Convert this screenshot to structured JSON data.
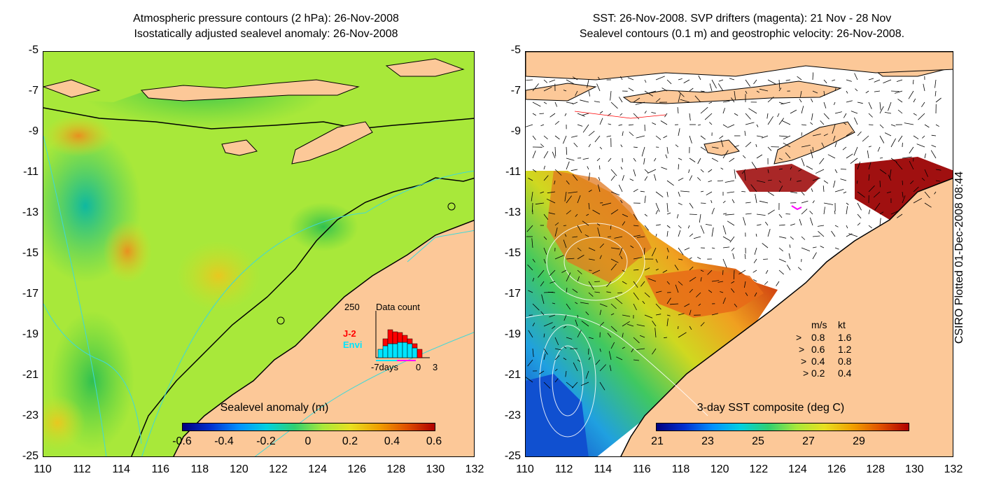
{
  "left_panel": {
    "title_line1": "Atmospheric pressure contours (2 hPa): 26-Nov-2008",
    "title_line2": "Isostatically adjusted sealevel anomaly: 26-Nov-2008",
    "colorbar_title": "Sealevel anomaly (m)",
    "colorbar_ticks": [
      "-0.6",
      "-0.4",
      "-0.2",
      "0",
      "0.2",
      "0.4",
      "0.6"
    ],
    "inset": {
      "max_label": "250",
      "title": "Data count",
      "sat1": "J-2",
      "sat2": "Envi",
      "x_start": "-7days",
      "x_zero": "0",
      "x_end": "3",
      "sat1_color": "#ff0000",
      "sat2_color": "#00e5ff"
    }
  },
  "right_panel": {
    "title_line1": "SST: 26-Nov-2008. SVP drifters (magenta): 21 Nov - 28 Nov",
    "title_line2": "Sealevel contours (0.1 m) and geostrophic velocity: 26-Nov-2008.",
    "colorbar_title": "3-day SST composite (deg C)",
    "colorbar_ticks": [
      "21",
      "23",
      "25",
      "27",
      "29"
    ],
    "legend": {
      "header_ms": "m/s",
      "header_kt": "kt",
      "rows": [
        {
          "ms": "0.8",
          "kt": "1.6"
        },
        {
          "ms": "0.6",
          "kt": "1.2"
        },
        {
          "ms": "0.4",
          "kt": "0.8"
        },
        {
          "ms": "0.2",
          "kt": "0.4"
        }
      ]
    }
  },
  "axes": {
    "y_ticks": [
      "-5",
      "-7",
      "-9",
      "-11",
      "-13",
      "-15",
      "-17",
      "-19",
      "-21",
      "-23",
      "-25"
    ],
    "x_ticks": [
      "110",
      "112",
      "114",
      "116",
      "118",
      "120",
      "122",
      "124",
      "126",
      "128",
      "130",
      "132"
    ],
    "lon_range": [
      110,
      132
    ],
    "lat_range": [
      -25,
      -5
    ]
  },
  "stamp": "CSIRO Plotted 01-Dec-2008 08:44",
  "colors": {
    "land": "#fcc898",
    "ocean_green": "#a8e83a",
    "contour": "#40d8d8"
  }
}
